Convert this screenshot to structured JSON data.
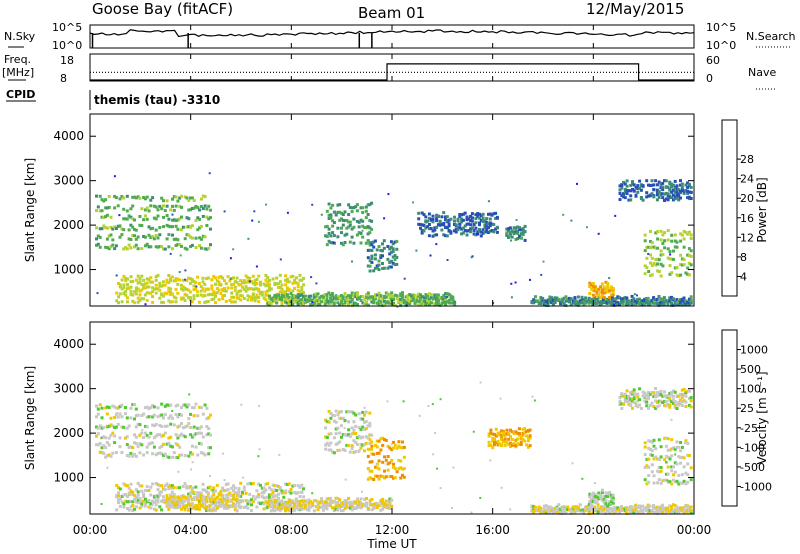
{
  "header": {
    "station": "Goose Bay (fitACF)",
    "beam": "Beam 01",
    "date": "12/May/2015"
  },
  "summary": {
    "nsky_label": "N.Sky",
    "nsearch_label": "N.Search",
    "nsky_ticks": [
      "10^5",
      "10^0"
    ],
    "nsearch_ticks": [
      "10^5",
      "10^0"
    ],
    "freq_label": "Freq.",
    "freq_unit": "[MHz]",
    "freq_ticks": [
      "18",
      "8"
    ],
    "nave_label": "Nave",
    "nave_ticks": [
      "60",
      "0"
    ],
    "cpid_label": "CPID",
    "cpid_value": "themis (tau) -3310"
  },
  "axes": {
    "xlabel": "Time UT",
    "x_ticks": [
      "00:00",
      "04:00",
      "08:00",
      "12:00",
      "16:00",
      "20:00",
      "00:00"
    ],
    "ylabel": "Slant Range [km]",
    "y_ticks": [
      "1000",
      "2000",
      "3000",
      "4000"
    ],
    "power_label": "Power [dB]",
    "power_ticks": [
      "4",
      "8",
      "12",
      "16",
      "20",
      "24",
      "28"
    ],
    "velocity_label": "Velocity [m s⁻¹]",
    "velocity_ticks": [
      "-1000",
      "-500",
      "-100",
      "-25",
      "25",
      "100",
      "500",
      "1000"
    ]
  },
  "colors": {
    "power_scale": [
      "#1e1ee6",
      "#2850b4",
      "#3c8c78",
      "#50aa50",
      "#b4d232",
      "#f0c800",
      "#f08c00",
      "#ff5000",
      "#e60000"
    ],
    "velocity_scale": [
      "#e60000",
      "#ff5000",
      "#f08c00",
      "#f0c800",
      "#c8c8c8",
      "#50c832",
      "#3c8c78",
      "#2850b4",
      "#1e1ee6"
    ]
  },
  "chart_data": [
    {
      "type": "line",
      "name": "N.Sky / N.Search",
      "x_range_hours": [
        0,
        24
      ],
      "y_scale": "log",
      "spikes_down_at_hours": [
        0.1,
        3.9,
        10.7,
        11.2
      ],
      "grid": false
    },
    {
      "type": "line",
      "name": "Freq. / Nave",
      "x_range_hours": [
        0,
        24
      ],
      "freq_steps": [
        {
          "from": 0,
          "to": 11.8,
          "mhz": 8
        },
        {
          "from": 11.8,
          "to": 21.8,
          "mhz": 15
        },
        {
          "from": 21.8,
          "to": 24,
          "mhz": 8
        }
      ],
      "nave_level": 20,
      "grid": false
    },
    {
      "type": "heatmap",
      "name": "Power",
      "x_range_hours": [
        0,
        24
      ],
      "ylim_km": [
        180,
        4500
      ],
      "value_range_db": [
        0,
        30
      ],
      "bands": [
        {
          "t0": 0.2,
          "t1": 4.8,
          "r0": 1500,
          "r1": 2800,
          "v": 12
        },
        {
          "t0": 1.0,
          "t1": 8.5,
          "r0": 300,
          "r1": 900,
          "v": 16
        },
        {
          "t0": 7.0,
          "t1": 14.5,
          "r0": 200,
          "r1": 450,
          "v": 12
        },
        {
          "t0": 9.3,
          "t1": 11.2,
          "r0": 1600,
          "r1": 2600,
          "v": 10
        },
        {
          "t0": 11.0,
          "t1": 12.2,
          "r0": 1000,
          "r1": 1700,
          "v": 8
        },
        {
          "t0": 13.0,
          "t1": 16.2,
          "r0": 1800,
          "r1": 2300,
          "v": 6
        },
        {
          "t0": 16.5,
          "t1": 17.3,
          "r0": 1700,
          "r1": 1950,
          "v": 8
        },
        {
          "t0": 17.5,
          "t1": 23.9,
          "r0": 200,
          "r1": 350,
          "v": 8
        },
        {
          "t0": 19.8,
          "t1": 20.8,
          "r0": 400,
          "r1": 700,
          "v": 20
        },
        {
          "t0": 21.0,
          "t1": 23.9,
          "r0": 2600,
          "r1": 3000,
          "v": 6
        },
        {
          "t0": 22.0,
          "t1": 23.9,
          "r0": 900,
          "r1": 2000,
          "v": 14
        }
      ]
    },
    {
      "type": "heatmap",
      "name": "Velocity",
      "x_range_hours": [
        0,
        24
      ],
      "ylim_km": [
        180,
        4500
      ],
      "value_range_ms": [
        -1000,
        1000
      ],
      "bands": [
        {
          "t0": 0.2,
          "t1": 4.8,
          "r0": 1500,
          "r1": 2800,
          "v": 10
        },
        {
          "t0": 1.0,
          "t1": 8.5,
          "r0": 300,
          "r1": 900,
          "v": 0
        },
        {
          "t0": 3.0,
          "t1": 6.0,
          "r0": 300,
          "r1": 600,
          "v": -100
        },
        {
          "t0": 7.0,
          "t1": 12.0,
          "r0": 300,
          "r1": 500,
          "v": -60
        },
        {
          "t0": 9.3,
          "t1": 11.2,
          "r0": 1600,
          "r1": 2600,
          "v": 0
        },
        {
          "t0": 11.0,
          "t1": 12.5,
          "r0": 1000,
          "r1": 2000,
          "v": -300
        },
        {
          "t0": 15.8,
          "t1": 17.5,
          "r0": 1700,
          "r1": 2100,
          "v": -300
        },
        {
          "t0": 17.5,
          "t1": 23.9,
          "r0": 200,
          "r1": 350,
          "v": -40
        },
        {
          "t0": 19.8,
          "t1": 20.8,
          "r0": 400,
          "r1": 700,
          "v": 60
        },
        {
          "t0": 21.0,
          "t1": 23.9,
          "r0": 2600,
          "r1": 3000,
          "v": 0
        },
        {
          "t0": 22.0,
          "t1": 23.9,
          "r0": 900,
          "r1": 2000,
          "v": 0
        }
      ]
    }
  ]
}
